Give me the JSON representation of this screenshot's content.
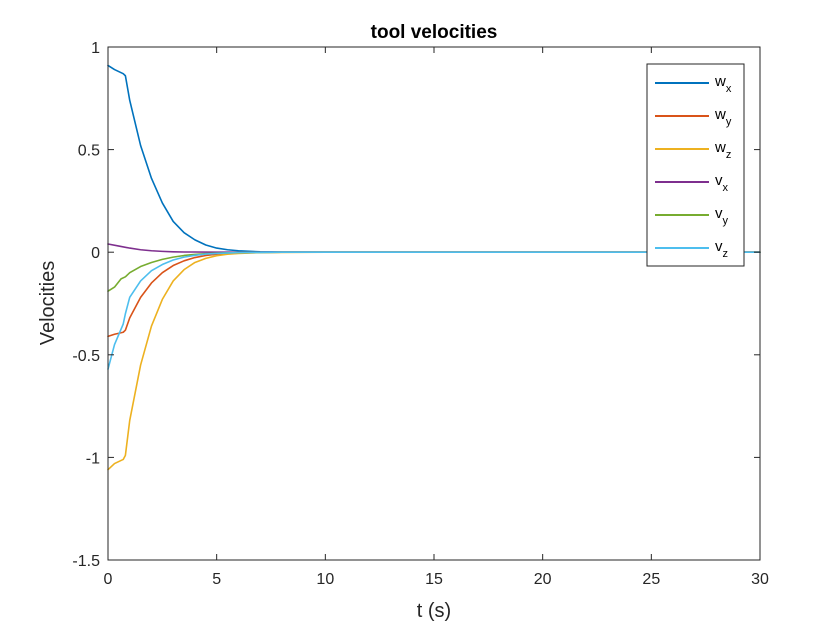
{
  "chart_data": {
    "type": "line",
    "title": "tool velocities",
    "xlabel": "t (s)",
    "ylabel": "Velocities",
    "xlim": [
      0,
      30
    ],
    "ylim": [
      -1.5,
      1
    ],
    "xticks": [
      0,
      5,
      10,
      15,
      20,
      25,
      30
    ],
    "yticks": [
      -1.5,
      -1,
      -0.5,
      0,
      0.5,
      1
    ],
    "xtick_labels": [
      "0",
      "5",
      "10",
      "15",
      "20",
      "25",
      "30"
    ],
    "ytick_labels": [
      "-1.5",
      "-1",
      "-0.5",
      "0",
      "0.5",
      "1"
    ],
    "grid": false,
    "legend_position": "top-right",
    "series": [
      {
        "name": "w_x",
        "label_main": "w",
        "label_sub": "x",
        "color": "#0072BD",
        "x": [
          0,
          0.3,
          0.7,
          0.8,
          1,
          1.5,
          2,
          2.5,
          3,
          3.5,
          4,
          4.5,
          5,
          5.5,
          6,
          7,
          8,
          10,
          15,
          20,
          25,
          30
        ],
        "y": [
          0.91,
          0.89,
          0.87,
          0.86,
          0.74,
          0.52,
          0.36,
          0.24,
          0.15,
          0.095,
          0.06,
          0.035,
          0.02,
          0.012,
          0.007,
          0.002,
          0.001,
          0,
          0,
          0,
          0,
          0
        ]
      },
      {
        "name": "w_y",
        "label_main": "w",
        "label_sub": "y",
        "color": "#D95319",
        "x": [
          0,
          0.3,
          0.7,
          0.8,
          1,
          1.5,
          2,
          2.5,
          3,
          3.5,
          4,
          4.5,
          5,
          5.5,
          6,
          7,
          8,
          10,
          15,
          20,
          25,
          30
        ],
        "y": [
          -0.41,
          -0.4,
          -0.39,
          -0.38,
          -0.32,
          -0.22,
          -0.15,
          -0.1,
          -0.065,
          -0.042,
          -0.026,
          -0.016,
          -0.01,
          -0.006,
          -0.004,
          -0.001,
          0,
          0,
          0,
          0,
          0,
          0
        ]
      },
      {
        "name": "w_z",
        "label_main": "w",
        "label_sub": "z",
        "color": "#EDB120",
        "x": [
          0,
          0.3,
          0.7,
          0.8,
          1,
          1.5,
          2,
          2.5,
          3,
          3.5,
          4,
          4.5,
          5,
          5.5,
          6,
          7,
          8,
          10,
          15,
          20,
          25,
          30
        ],
        "y": [
          -1.06,
          -1.03,
          -1.01,
          -0.99,
          -0.82,
          -0.55,
          -0.36,
          -0.23,
          -0.14,
          -0.085,
          -0.05,
          -0.03,
          -0.017,
          -0.01,
          -0.006,
          -0.002,
          -0.001,
          0,
          0,
          0,
          0,
          0
        ]
      },
      {
        "name": "v_x",
        "label_main": "v",
        "label_sub": "x",
        "color": "#7E2F8E",
        "x": [
          0,
          0.5,
          1,
          1.5,
          2,
          2.5,
          3,
          3.5,
          4,
          5,
          6,
          8,
          10,
          15,
          20,
          25,
          30
        ],
        "y": [
          0.04,
          0.03,
          0.02,
          0.012,
          0.007,
          0.004,
          0.002,
          0.001,
          0.001,
          0,
          0,
          0,
          0,
          0,
          0,
          0,
          0
        ]
      },
      {
        "name": "v_y",
        "label_main": "v",
        "label_sub": "y",
        "color": "#77AC30",
        "x": [
          0,
          0.3,
          0.6,
          0.8,
          1,
          1.5,
          2,
          2.5,
          3,
          3.5,
          4,
          4.5,
          5,
          6,
          7,
          8,
          10,
          15,
          20,
          25,
          30
        ],
        "y": [
          -0.19,
          -0.17,
          -0.13,
          -0.12,
          -0.1,
          -0.07,
          -0.05,
          -0.035,
          -0.024,
          -0.016,
          -0.011,
          -0.007,
          -0.005,
          -0.002,
          -0.001,
          0,
          0,
          0,
          0,
          0,
          0
        ]
      },
      {
        "name": "v_z",
        "label_main": "v",
        "label_sub": "z",
        "color": "#4DBEEE",
        "x": [
          0,
          0.3,
          0.7,
          0.8,
          1,
          1.5,
          2,
          2.5,
          3,
          3.5,
          4,
          4.5,
          5,
          6,
          7,
          8,
          10,
          15,
          20,
          25,
          30
        ],
        "y": [
          -0.57,
          -0.45,
          -0.35,
          -0.3,
          -0.22,
          -0.14,
          -0.09,
          -0.06,
          -0.038,
          -0.024,
          -0.015,
          -0.009,
          -0.006,
          -0.002,
          -0.001,
          0,
          0,
          0,
          0,
          0,
          0
        ]
      }
    ]
  }
}
